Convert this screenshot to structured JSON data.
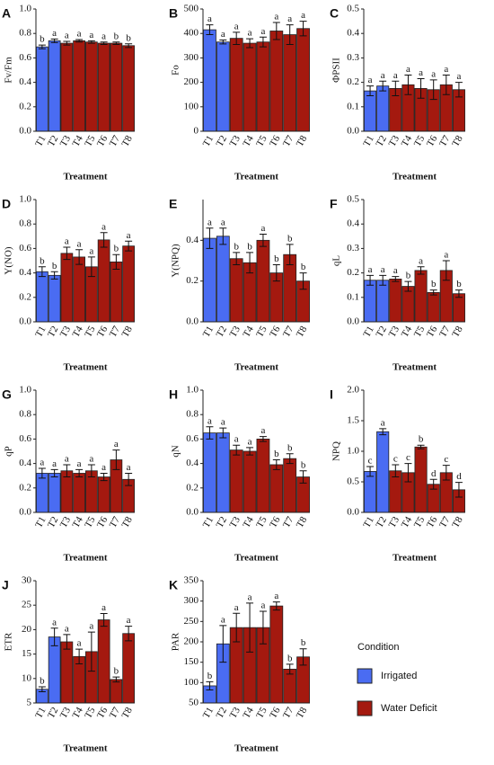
{
  "chart_data": [
    {
      "type": "bar",
      "label": "A",
      "ylabel": "Fv/Fm",
      "xlabel": "Treatment",
      "categories": [
        "T1",
        "T2",
        "T3",
        "T4",
        "T5",
        "T6",
        "T7",
        "T8"
      ],
      "values": [
        0.69,
        0.74,
        0.72,
        0.74,
        0.73,
        0.72,
        0.72,
        0.7
      ],
      "errors": [
        0.015,
        0.015,
        0.015,
        0.01,
        0.01,
        0.01,
        0.01,
        0.015
      ],
      "letters": [
        "b",
        "a",
        "a",
        "a",
        "a",
        "a",
        "b",
        "b"
      ],
      "colors": [
        "#4a6cf2",
        "#4a6cf2",
        "#a4190f",
        "#a4190f",
        "#a4190f",
        "#a4190f",
        "#a4190f",
        "#a4190f"
      ],
      "ylim": [
        0,
        1.0
      ],
      "yticks": [
        {
          "value": 0,
          "label": "0.0"
        },
        0.2,
        0.4,
        0.6,
        0.8,
        {
          "value": 1,
          "label": "1.0"
        }
      ]
    },
    {
      "type": "bar",
      "label": "B",
      "ylabel": "Fo",
      "xlabel": "Treatment",
      "categories": [
        "T1",
        "T2",
        "T3",
        "T4",
        "T5",
        "T6",
        "T7",
        "T8"
      ],
      "values": [
        415,
        365,
        380,
        360,
        365,
        410,
        395,
        420
      ],
      "errors": [
        20,
        8,
        25,
        18,
        20,
        35,
        40,
        30
      ],
      "letters": [
        "a",
        "a",
        "a",
        "a",
        "a",
        "a",
        "a",
        "a"
      ],
      "colors": [
        "#4a6cf2",
        "#4a6cf2",
        "#a4190f",
        "#a4190f",
        "#a4190f",
        "#a4190f",
        "#a4190f",
        "#a4190f"
      ],
      "ylim": [
        0,
        500
      ],
      "yticks": [
        0,
        100,
        200,
        300,
        400,
        500
      ]
    },
    {
      "type": "bar",
      "label": "C",
      "ylabel": "ΦPSII",
      "xlabel": "Treatment",
      "categories": [
        "T1",
        "T2",
        "T3",
        "T4",
        "T5",
        "T6",
        "T7",
        "T8"
      ],
      "values": [
        0.165,
        0.185,
        0.175,
        0.19,
        0.175,
        0.17,
        0.19,
        0.17
      ],
      "errors": [
        0.02,
        0.02,
        0.03,
        0.04,
        0.04,
        0.04,
        0.04,
        0.03
      ],
      "letters": [
        "a",
        "a",
        "a",
        "a",
        "a",
        "a",
        "a",
        "a"
      ],
      "colors": [
        "#4a6cf2",
        "#4a6cf2",
        "#a4190f",
        "#a4190f",
        "#a4190f",
        "#a4190f",
        "#a4190f",
        "#a4190f"
      ],
      "ylim": [
        0,
        0.5
      ],
      "yticks": [
        {
          "value": 0,
          "label": "0.0"
        },
        0.1,
        0.2,
        0.3,
        0.4,
        0.5
      ]
    },
    {
      "type": "bar",
      "label": "D",
      "ylabel": "Y(NO)",
      "xlabel": "Treatment",
      "categories": [
        "T1",
        "T2",
        "T3",
        "T4",
        "T5",
        "T6",
        "T7",
        "T8"
      ],
      "values": [
        0.41,
        0.38,
        0.56,
        0.53,
        0.45,
        0.67,
        0.49,
        0.62
      ],
      "errors": [
        0.04,
        0.03,
        0.05,
        0.06,
        0.08,
        0.06,
        0.06,
        0.04
      ],
      "letters": [
        "b",
        "b",
        "a",
        "a",
        "a",
        "a",
        "b",
        "a"
      ],
      "colors": [
        "#4a6cf2",
        "#4a6cf2",
        "#a4190f",
        "#a4190f",
        "#a4190f",
        "#a4190f",
        "#a4190f",
        "#a4190f"
      ],
      "ylim": [
        0,
        1.0
      ],
      "yticks": [
        {
          "value": 0,
          "label": "0.0"
        },
        0.2,
        0.4,
        0.6,
        0.8,
        {
          "value": 1,
          "label": "1.0"
        }
      ]
    },
    {
      "type": "bar",
      "label": "E",
      "ylabel": "Y(NPQ)",
      "xlabel": "Treatment",
      "categories": [
        "T1",
        "T2",
        "T3",
        "T4",
        "T5",
        "T6",
        "T7",
        "T8"
      ],
      "values": [
        0.41,
        0.42,
        0.31,
        0.29,
        0.4,
        0.24,
        0.33,
        0.2
      ],
      "errors": [
        0.05,
        0.04,
        0.03,
        0.05,
        0.03,
        0.04,
        0.05,
        0.04
      ],
      "letters": [
        "a",
        "a",
        "b",
        "b",
        "a",
        "b",
        "b",
        "b"
      ],
      "colors": [
        "#4a6cf2",
        "#4a6cf2",
        "#a4190f",
        "#a4190f",
        "#a4190f",
        "#a4190f",
        "#a4190f",
        "#a4190f"
      ],
      "ylim": [
        0,
        0.6
      ],
      "yticks": [
        {
          "value": 0,
          "label": "0.0"
        },
        0.2,
        0.4
      ]
    },
    {
      "type": "bar",
      "label": "F",
      "ylabel": "qL",
      "xlabel": "Treatment",
      "categories": [
        "T1",
        "T2",
        "T3",
        "T4",
        "T5",
        "T6",
        "T7",
        "T8"
      ],
      "values": [
        0.17,
        0.17,
        0.175,
        0.145,
        0.21,
        0.12,
        0.21,
        0.115
      ],
      "errors": [
        0.02,
        0.02,
        0.01,
        0.02,
        0.015,
        0.01,
        0.04,
        0.015
      ],
      "letters": [
        "a",
        "a",
        "a",
        "b",
        "a",
        "b",
        "a",
        "b"
      ],
      "colors": [
        "#4a6cf2",
        "#4a6cf2",
        "#a4190f",
        "#a4190f",
        "#a4190f",
        "#a4190f",
        "#a4190f",
        "#a4190f"
      ],
      "ylim": [
        0,
        0.5
      ],
      "yticks": [
        {
          "value": 0,
          "label": "0.0"
        },
        0.1,
        0.2,
        0.3,
        0.4,
        0.5
      ]
    },
    {
      "type": "bar",
      "label": "G",
      "ylabel": "qP",
      "xlabel": "Treatment",
      "categories": [
        "T1",
        "T2",
        "T3",
        "T4",
        "T5",
        "T6",
        "T7",
        "T8"
      ],
      "values": [
        0.32,
        0.32,
        0.34,
        0.32,
        0.34,
        0.29,
        0.43,
        0.27
      ],
      "errors": [
        0.04,
        0.03,
        0.05,
        0.03,
        0.05,
        0.03,
        0.08,
        0.05
      ],
      "letters": [
        "a",
        "a",
        "a",
        "a",
        "a",
        "a",
        "a",
        "a"
      ],
      "colors": [
        "#4a6cf2",
        "#4a6cf2",
        "#a4190f",
        "#a4190f",
        "#a4190f",
        "#a4190f",
        "#a4190f",
        "#a4190f"
      ],
      "ylim": [
        0,
        1.0
      ],
      "yticks": [
        {
          "value": 0,
          "label": "0.0"
        },
        0.2,
        0.4,
        0.6,
        0.8,
        {
          "value": 1,
          "label": "1.0"
        }
      ]
    },
    {
      "type": "bar",
      "label": "H",
      "ylabel": "qN",
      "xlabel": "Treatment",
      "categories": [
        "T1",
        "T2",
        "T3",
        "T4",
        "T5",
        "T6",
        "T7",
        "T8"
      ],
      "values": [
        0.65,
        0.65,
        0.51,
        0.5,
        0.6,
        0.39,
        0.44,
        0.29
      ],
      "errors": [
        0.05,
        0.04,
        0.04,
        0.03,
        0.02,
        0.04,
        0.04,
        0.05
      ],
      "letters": [
        "a",
        "a",
        "a",
        "a",
        "a",
        "b",
        "b",
        "b"
      ],
      "colors": [
        "#4a6cf2",
        "#4a6cf2",
        "#a4190f",
        "#a4190f",
        "#a4190f",
        "#a4190f",
        "#a4190f",
        "#a4190f"
      ],
      "ylim": [
        0,
        1.0
      ],
      "yticks": [
        {
          "value": 0,
          "label": "0.0"
        },
        0.2,
        0.4,
        0.6,
        0.8,
        {
          "value": 1,
          "label": "1.0"
        }
      ]
    },
    {
      "type": "bar",
      "label": "I",
      "ylabel": "NPQ",
      "xlabel": "Treatment",
      "categories": [
        "T1",
        "T2",
        "T3",
        "T4",
        "T5",
        "T6",
        "T7",
        "T8"
      ],
      "values": [
        0.67,
        1.32,
        0.68,
        0.65,
        1.07,
        0.46,
        0.65,
        0.37
      ],
      "errors": [
        0.08,
        0.05,
        0.1,
        0.15,
        0.03,
        0.08,
        0.12,
        0.12
      ],
      "letters": [
        "c",
        "a",
        "c",
        "c",
        "b",
        "d",
        "c",
        "d"
      ],
      "colors": [
        "#4a6cf2",
        "#4a6cf2",
        "#a4190f",
        "#a4190f",
        "#a4190f",
        "#a4190f",
        "#a4190f",
        "#a4190f"
      ],
      "ylim": [
        0,
        2.0
      ],
      "yticks": [
        {
          "value": 0,
          "label": "0.0"
        },
        0.5,
        {
          "value": 1,
          "label": "1.0"
        },
        1.5,
        {
          "value": 2,
          "label": "2.0"
        }
      ]
    },
    {
      "type": "bar",
      "label": "J",
      "ylabel": "ETR",
      "xlabel": "Treatment",
      "categories": [
        "T1",
        "T2",
        "T3",
        "T4",
        "T5",
        "T6",
        "T7",
        "T8"
      ],
      "values": [
        7.8,
        18.5,
        17.5,
        14.5,
        15.5,
        22,
        9.8,
        19.2
      ],
      "errors": [
        0.5,
        1.8,
        1.5,
        1.5,
        4,
        1.3,
        0.5,
        1.5
      ],
      "letters": [
        "b",
        "a",
        "a",
        "a",
        "a",
        "a",
        "b",
        "a"
      ],
      "colors": [
        "#4a6cf2",
        "#4a6cf2",
        "#a4190f",
        "#a4190f",
        "#a4190f",
        "#a4190f",
        "#a4190f",
        "#a4190f"
      ],
      "ylim": [
        5,
        30
      ],
      "yticks": [
        5,
        10,
        15,
        20,
        25,
        30
      ]
    },
    {
      "type": "bar",
      "label": "K",
      "ylabel": "PAR",
      "xlabel": "Treatment",
      "categories": [
        "T1",
        "T2",
        "T3",
        "T4",
        "T5",
        "T6",
        "T7",
        "T8"
      ],
      "values": [
        92,
        195,
        235,
        235,
        235,
        288,
        133,
        163
      ],
      "errors": [
        10,
        45,
        35,
        60,
        40,
        10,
        12,
        20
      ],
      "letters": [
        "b",
        "a",
        "a",
        "a",
        "a",
        "a",
        "b",
        "b"
      ],
      "colors": [
        "#4a6cf2",
        "#4a6cf2",
        "#a4190f",
        "#a4190f",
        "#a4190f",
        "#a4190f",
        "#a4190f",
        "#a4190f"
      ],
      "ylim": [
        50,
        350
      ],
      "yticks": [
        50,
        100,
        150,
        200,
        250,
        300,
        350
      ]
    }
  ],
  "legend": {
    "title": "Condition",
    "items": [
      {
        "name": "Irrigated",
        "color": "#4a6cf2"
      },
      {
        "name": "Water Deficit",
        "color": "#a4190f"
      }
    ]
  }
}
